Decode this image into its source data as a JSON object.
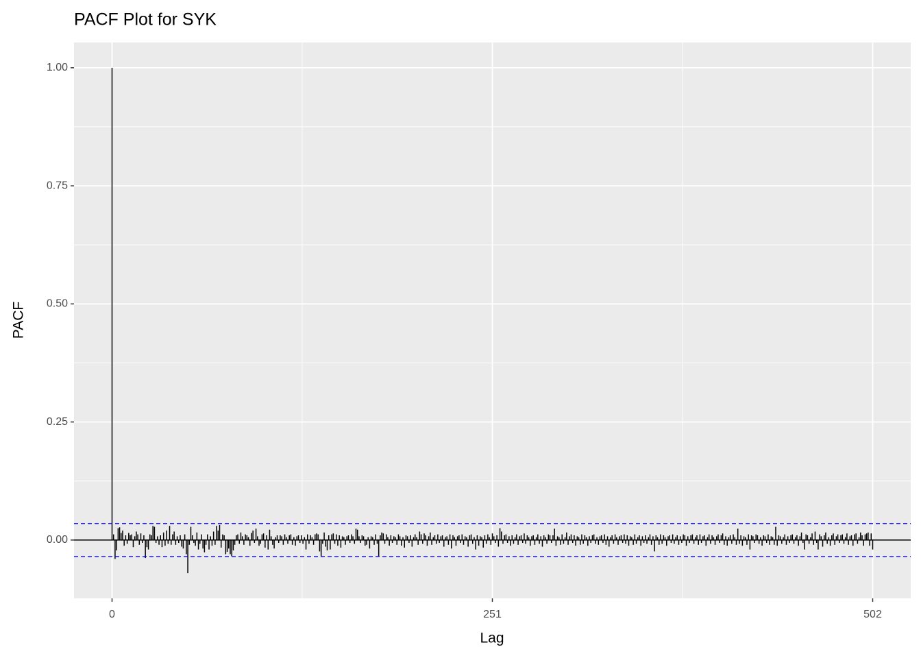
{
  "chart_data": {
    "type": "pacf",
    "title": "PACF Plot for SYK",
    "xlabel": "Lag",
    "ylabel": "PACF",
    "xlim": [
      -25.1,
      527.1
    ],
    "xticks": [
      0,
      251,
      502
    ],
    "ylim": [
      -0.1235,
      1.0535
    ],
    "yticks": [
      {
        "value": 0,
        "label": "0.00"
      },
      {
        "value": 0.25,
        "label": "0.25"
      },
      {
        "value": 0.5,
        "label": "0.50"
      },
      {
        "value": 0.75,
        "label": "0.75"
      },
      {
        "value": 1,
        "label": "1.00"
      }
    ],
    "grid": true,
    "color": "#000000",
    "ci_lines": [
      0.035,
      -0.035
    ],
    "ci_color": "#0000ff",
    "x": [
      0,
      1,
      2,
      3,
      4,
      5,
      6,
      7,
      8,
      9,
      10,
      11,
      12,
      13,
      14,
      15,
      16,
      17,
      18,
      19,
      20,
      21,
      22,
      23,
      24,
      25,
      26,
      27,
      28,
      29,
      30,
      31,
      32,
      33,
      34,
      35,
      36,
      37,
      38,
      39,
      40,
      41,
      42,
      43,
      44,
      45,
      46,
      47,
      48,
      49,
      50,
      51,
      52,
      53,
      54,
      55,
      56,
      57,
      58,
      59,
      60,
      61,
      62,
      63,
      64,
      65,
      66,
      67,
      68,
      69,
      70,
      71,
      72,
      73,
      74,
      75,
      76,
      77,
      78,
      79,
      80,
      81,
      82,
      83,
      84,
      85,
      86,
      87,
      88,
      89,
      90,
      91,
      92,
      93,
      94,
      95,
      96,
      97,
      98,
      99,
      100,
      101,
      102,
      103,
      104,
      105,
      106,
      107,
      108,
      109,
      110,
      111,
      112,
      113,
      114,
      115,
      116,
      117,
      118,
      119,
      120,
      121,
      122,
      123,
      124,
      125,
      126,
      127,
      128,
      129,
      130,
      131,
      132,
      133,
      134,
      135,
      136,
      137,
      138,
      139,
      140,
      141,
      142,
      143,
      144,
      145,
      146,
      147,
      148,
      149,
      150,
      151,
      152,
      153,
      154,
      155,
      156,
      157,
      158,
      159,
      160,
      161,
      162,
      163,
      164,
      165,
      166,
      167,
      168,
      169,
      170,
      171,
      172,
      173,
      174,
      175,
      176,
      177,
      178,
      179,
      180,
      181,
      182,
      183,
      184,
      185,
      186,
      187,
      188,
      189,
      190,
      191,
      192,
      193,
      194,
      195,
      196,
      197,
      198,
      199,
      200,
      201,
      202,
      203,
      204,
      205,
      206,
      207,
      208,
      209,
      210,
      211,
      212,
      213,
      214,
      215,
      216,
      217,
      218,
      219,
      220,
      221,
      222,
      223,
      224,
      225,
      226,
      227,
      228,
      229,
      230,
      231,
      232,
      233,
      234,
      235,
      236,
      237,
      238,
      239,
      240,
      241,
      242,
      243,
      244,
      245,
      246,
      247,
      248,
      249,
      250,
      251,
      252,
      253,
      254,
      255,
      256,
      257,
      258,
      259,
      260,
      261,
      262,
      263,
      264,
      265,
      266,
      267,
      268,
      269,
      270,
      271,
      272,
      273,
      274,
      275,
      276,
      277,
      278,
      279,
      280,
      281,
      282,
      283,
      284,
      285,
      286,
      287,
      288,
      289,
      290,
      291,
      292,
      293,
      294,
      295,
      296,
      297,
      298,
      299,
      300,
      301,
      302,
      303,
      304,
      305,
      306,
      307,
      308,
      309,
      310,
      311,
      312,
      313,
      314,
      315,
      316,
      317,
      318,
      319,
      320,
      321,
      322,
      323,
      324,
      325,
      326,
      327,
      328,
      329,
      330,
      331,
      332,
      333,
      334,
      335,
      336,
      337,
      338,
      339,
      340,
      341,
      342,
      343,
      344,
      345,
      346,
      347,
      348,
      349,
      350,
      351,
      352,
      353,
      354,
      355,
      356,
      357,
      358,
      359,
      360,
      361,
      362,
      363,
      364,
      365,
      366,
      367,
      368,
      369,
      370,
      371,
      372,
      373,
      374,
      375,
      376,
      377,
      378,
      379,
      380,
      381,
      382,
      383,
      384,
      385,
      386,
      387,
      388,
      389,
      390,
      391,
      392,
      393,
      394,
      395,
      396,
      397,
      398,
      399,
      400,
      401,
      402,
      403,
      404,
      405,
      406,
      407,
      408,
      409,
      410,
      411,
      412,
      413,
      414,
      415,
      416,
      417,
      418,
      419,
      420,
      421,
      422,
      423,
      424,
      425,
      426,
      427,
      428,
      429,
      430,
      431,
      432,
      433,
      434,
      435,
      436,
      437,
      438,
      439,
      440,
      441,
      442,
      443,
      444,
      445,
      446,
      447,
      448,
      449,
      450,
      451,
      452,
      453,
      454,
      455,
      456,
      457,
      458,
      459,
      460,
      461,
      462,
      463,
      464,
      465,
      466,
      467,
      468,
      469,
      470,
      471,
      472,
      473,
      474,
      475,
      476,
      477,
      478,
      479,
      480,
      481,
      482,
      483,
      484,
      485,
      486,
      487,
      488,
      489,
      490,
      491,
      492,
      493,
      494,
      495,
      496,
      497,
      498,
      499,
      500,
      501,
      502
    ],
    "values": [
      1.0,
      0.012,
      -0.04,
      -0.022,
      0.025,
      0.027,
      0.015,
      0.02,
      -0.012,
      0.01,
      -0.008,
      0.015,
      0.01,
      0.012,
      -0.015,
      0.008,
      0.018,
      0.012,
      -0.01,
      0.014,
      -0.006,
      0.01,
      -0.038,
      -0.015,
      -0.02,
      0.012,
      0.01,
      0.03,
      0.028,
      -0.006,
      0.008,
      -0.01,
      0.01,
      -0.015,
      0.016,
      -0.012,
      0.02,
      -0.008,
      0.03,
      -0.01,
      0.012,
      0.018,
      -0.01,
      0.008,
      -0.006,
      0.01,
      -0.014,
      -0.018,
      0.012,
      -0.03,
      -0.07,
      -0.01,
      0.028,
      0.01,
      -0.006,
      -0.012,
      0.016,
      -0.02,
      -0.008,
      0.012,
      -0.018,
      -0.026,
      -0.01,
      0.012,
      -0.02,
      0.008,
      -0.012,
      0.018,
      -0.01,
      0.03,
      0.02,
      0.032,
      -0.016,
      0.012,
      0.01,
      -0.03,
      -0.025,
      -0.018,
      -0.03,
      -0.034,
      -0.022,
      -0.01,
      0.01,
      0.012,
      -0.008,
      0.016,
      0.008,
      -0.01,
      0.012,
      0.01,
      0.006,
      -0.012,
      0.015,
      0.02,
      -0.006,
      0.024,
      0.008,
      -0.012,
      -0.008,
      0.012,
      0.014,
      -0.016,
      0.01,
      -0.02,
      0.022,
      0.008,
      -0.01,
      -0.018,
      0.006,
      0.01,
      -0.006,
      0.01,
      0.008,
      -0.01,
      0.012,
      0.006,
      -0.008,
      0.01,
      0.012,
      -0.01,
      0.006,
      -0.012,
      0.008,
      0.01,
      -0.006,
      0.01,
      -0.008,
      0.006,
      -0.02,
      0.012,
      -0.008,
      0.01,
      0.006,
      -0.01,
      0.012,
      0.014,
      0.012,
      -0.024,
      -0.034,
      -0.008,
      0.016,
      -0.014,
      -0.022,
      0.01,
      -0.02,
      0.012,
      0.014,
      -0.008,
      0.012,
      -0.012,
      0.01,
      -0.016,
      0.008,
      0.006,
      -0.01,
      0.008,
      0.01,
      -0.006,
      0.012,
      0.008,
      -0.008,
      0.024,
      0.022,
      0.008,
      -0.006,
      0.01,
      0.008,
      -0.012,
      -0.01,
      0.006,
      -0.018,
      0.008,
      0.006,
      -0.01,
      0.012,
      -0.008,
      -0.034,
      0.01,
      0.016,
      0.014,
      -0.008,
      0.012,
      0.006,
      -0.012,
      0.01,
      -0.006,
      0.008,
      0.006,
      -0.01,
      0.012,
      0.008,
      -0.012,
      0.006,
      -0.016,
      0.01,
      0.008,
      -0.006,
      0.01,
      -0.014,
      0.006,
      0.012,
      0.006,
      -0.01,
      0.018,
      0.012,
      -0.008,
      0.014,
      0.01,
      -0.012,
      0.008,
      0.016,
      -0.01,
      0.006,
      0.01,
      -0.008,
      0.012,
      -0.006,
      0.008,
      0.01,
      -0.014,
      0.006,
      0.008,
      -0.01,
      0.012,
      -0.018,
      0.01,
      0.006,
      -0.012,
      0.008,
      0.01,
      -0.006,
      0.012,
      -0.01,
      0.008,
      0.006,
      -0.014,
      0.01,
      0.012,
      -0.008,
      0.006,
      -0.02,
      0.01,
      -0.012,
      0.008,
      0.006,
      -0.016,
      0.01,
      -0.008,
      0.012,
      0.006,
      -0.01,
      0.014,
      0.008,
      -0.006,
      0.01,
      -0.014,
      0.025,
      0.018,
      -0.008,
      0.01,
      0.012,
      -0.006,
      0.008,
      -0.012,
      0.01,
      -0.008,
      0.006,
      0.012,
      -0.01,
      0.008,
      0.01,
      -0.006,
      0.014,
      -0.008,
      0.01,
      0.006,
      -0.012,
      0.008,
      0.01,
      -0.01,
      0.006,
      0.012,
      -0.008,
      0.008,
      -0.014,
      0.01,
      0.006,
      -0.008,
      0.012,
      0.01,
      -0.006,
      0.01,
      0.024,
      -0.012,
      0.008,
      0.006,
      -0.01,
      0.012,
      -0.008,
      0.006,
      0.016,
      -0.01,
      0.008,
      0.012,
      -0.006,
      0.01,
      -0.012,
      0.008,
      0.006,
      -0.01,
      0.012,
      -0.008,
      0.01,
      0.006,
      -0.012,
      0.008,
      -0.006,
      0.01,
      0.012,
      -0.008,
      0.006,
      -0.01,
      0.008,
      0.01,
      -0.006,
      0.012,
      -0.01,
      0.008,
      -0.014,
      0.006,
      0.01,
      -0.008,
      0.012,
      0.006,
      -0.01,
      0.008,
      0.01,
      -0.006,
      0.012,
      -0.008,
      0.01,
      -0.012,
      0.008,
      0.006,
      -0.01,
      0.012,
      -0.008,
      0.006,
      0.01,
      -0.012,
      0.008,
      -0.006,
      0.01,
      -0.008,
      0.006,
      0.012,
      -0.01,
      0.008,
      -0.024,
      0.01,
      0.006,
      -0.01,
      0.012,
      -0.008,
      0.01,
      0.006,
      -0.012,
      0.008,
      0.01,
      -0.006,
      0.012,
      -0.008,
      0.006,
      0.01,
      -0.01,
      0.008,
      -0.006,
      0.012,
      0.01,
      -0.012,
      0.008,
      -0.006,
      0.01,
      0.012,
      -0.008,
      0.006,
      0.01,
      -0.01,
      0.012,
      -0.006,
      0.008,
      0.01,
      -0.012,
      0.006,
      0.012,
      -0.008,
      0.01,
      0.006,
      -0.01,
      0.008,
      0.012,
      -0.006,
      0.01,
      0.014,
      -0.01,
      0.008,
      -0.012,
      0.006,
      0.01,
      -0.008,
      0.012,
      0.006,
      -0.01,
      0.024,
      -0.008,
      0.01,
      -0.012,
      0.008,
      0.006,
      -0.01,
      0.012,
      -0.02,
      0.01,
      0.008,
      -0.006,
      0.012,
      0.01,
      -0.008,
      0.006,
      -0.012,
      0.01,
      0.008,
      -0.006,
      0.012,
      -0.01,
      0.008,
      0.006,
      -0.01,
      0.028,
      -0.012,
      0.01,
      0.008,
      -0.008,
      0.006,
      0.012,
      -0.01,
      0.008,
      -0.006,
      0.01,
      0.012,
      -0.008,
      0.006,
      0.01,
      -0.012,
      0.008,
      0.016,
      -0.006,
      -0.02,
      0.012,
      0.01,
      -0.008,
      0.006,
      0.014,
      -0.01,
      0.018,
      -0.006,
      -0.02,
      0.012,
      0.008,
      -0.014,
      0.01,
      0.016,
      -0.008,
      0.006,
      -0.012,
      0.01,
      0.014,
      -0.01,
      0.008,
      0.012,
      -0.006,
      0.01,
      0.012,
      -0.008,
      0.006,
      0.014,
      -0.01,
      0.008,
      0.01,
      -0.012,
      0.012,
      0.014,
      -0.008,
      0.006,
      0.016,
      0.01,
      -0.012,
      0.012,
      0.014,
      0.016,
      -0.012,
      0.014,
      -0.02
    ]
  }
}
